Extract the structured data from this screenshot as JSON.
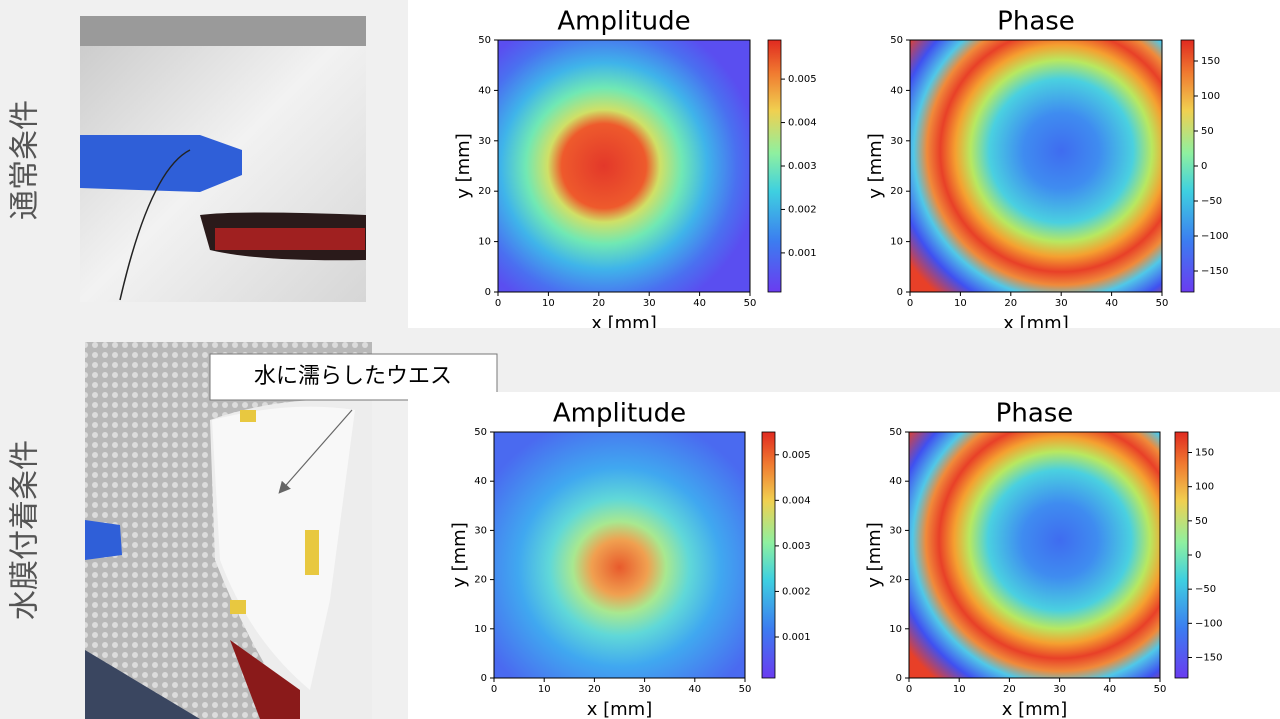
{
  "rows": [
    {
      "label": "通常条件",
      "panels": [
        {
          "title": "Amplitude",
          "x_label": "x [mm]",
          "y_label": "y [mm]",
          "xlim": [
            0,
            50
          ],
          "ylim": [
            0,
            50
          ],
          "xticks": [
            0,
            10,
            20,
            30,
            40,
            50
          ],
          "yticks": [
            0,
            10,
            20,
            30,
            40,
            50
          ],
          "colorbar_lim": [
            0.0001,
            0.0059
          ],
          "colorbar_ticks": [
            0.001,
            0.002,
            0.003,
            0.004,
            0.005
          ]
        },
        {
          "title": "Phase",
          "x_label": "x [mm]",
          "y_label": "y [mm]",
          "xlim": [
            0,
            50
          ],
          "ylim": [
            0,
            50
          ],
          "xticks": [
            0,
            10,
            20,
            30,
            40,
            50
          ],
          "yticks": [
            0,
            10,
            20,
            30,
            40,
            50
          ],
          "colorbar_lim": [
            -180,
            180
          ],
          "colorbar_ticks": [
            {
              "value": -150,
              "label": "−150"
            },
            {
              "value": -100,
              "label": "−100"
            },
            {
              "value": -50,
              "label": "−50"
            },
            0,
            50,
            100,
            150
          ]
        }
      ]
    },
    {
      "label": "水膜付着条件",
      "panels": [
        {
          "title": "Amplitude",
          "x_label": "x [mm]",
          "y_label": "y [mm]",
          "xlim": [
            0,
            50
          ],
          "ylim": [
            0,
            50
          ],
          "xticks": [
            0,
            10,
            20,
            30,
            40,
            50
          ],
          "yticks": [
            0,
            10,
            20,
            30,
            40,
            50
          ],
          "colorbar_lim": [
            0.0001,
            0.0055
          ],
          "colorbar_ticks": [
            0.001,
            0.002,
            0.003,
            0.004,
            0.005
          ]
        },
        {
          "title": "Phase",
          "x_label": "x [mm]",
          "y_label": "y [mm]",
          "xlim": [
            0,
            50
          ],
          "ylim": [
            0,
            50
          ],
          "xticks": [
            0,
            10,
            20,
            30,
            40,
            50
          ],
          "yticks": [
            0,
            10,
            20,
            30,
            40,
            50
          ],
          "colorbar_lim": [
            -180,
            180
          ],
          "colorbar_ticks": [
            {
              "value": -150,
              "label": "−150"
            },
            {
              "value": -100,
              "label": "−100"
            },
            {
              "value": -50,
              "label": "−50"
            },
            0,
            50,
            100,
            150
          ]
        }
      ]
    }
  ],
  "annotation": "水に濡らしたウエス"
}
